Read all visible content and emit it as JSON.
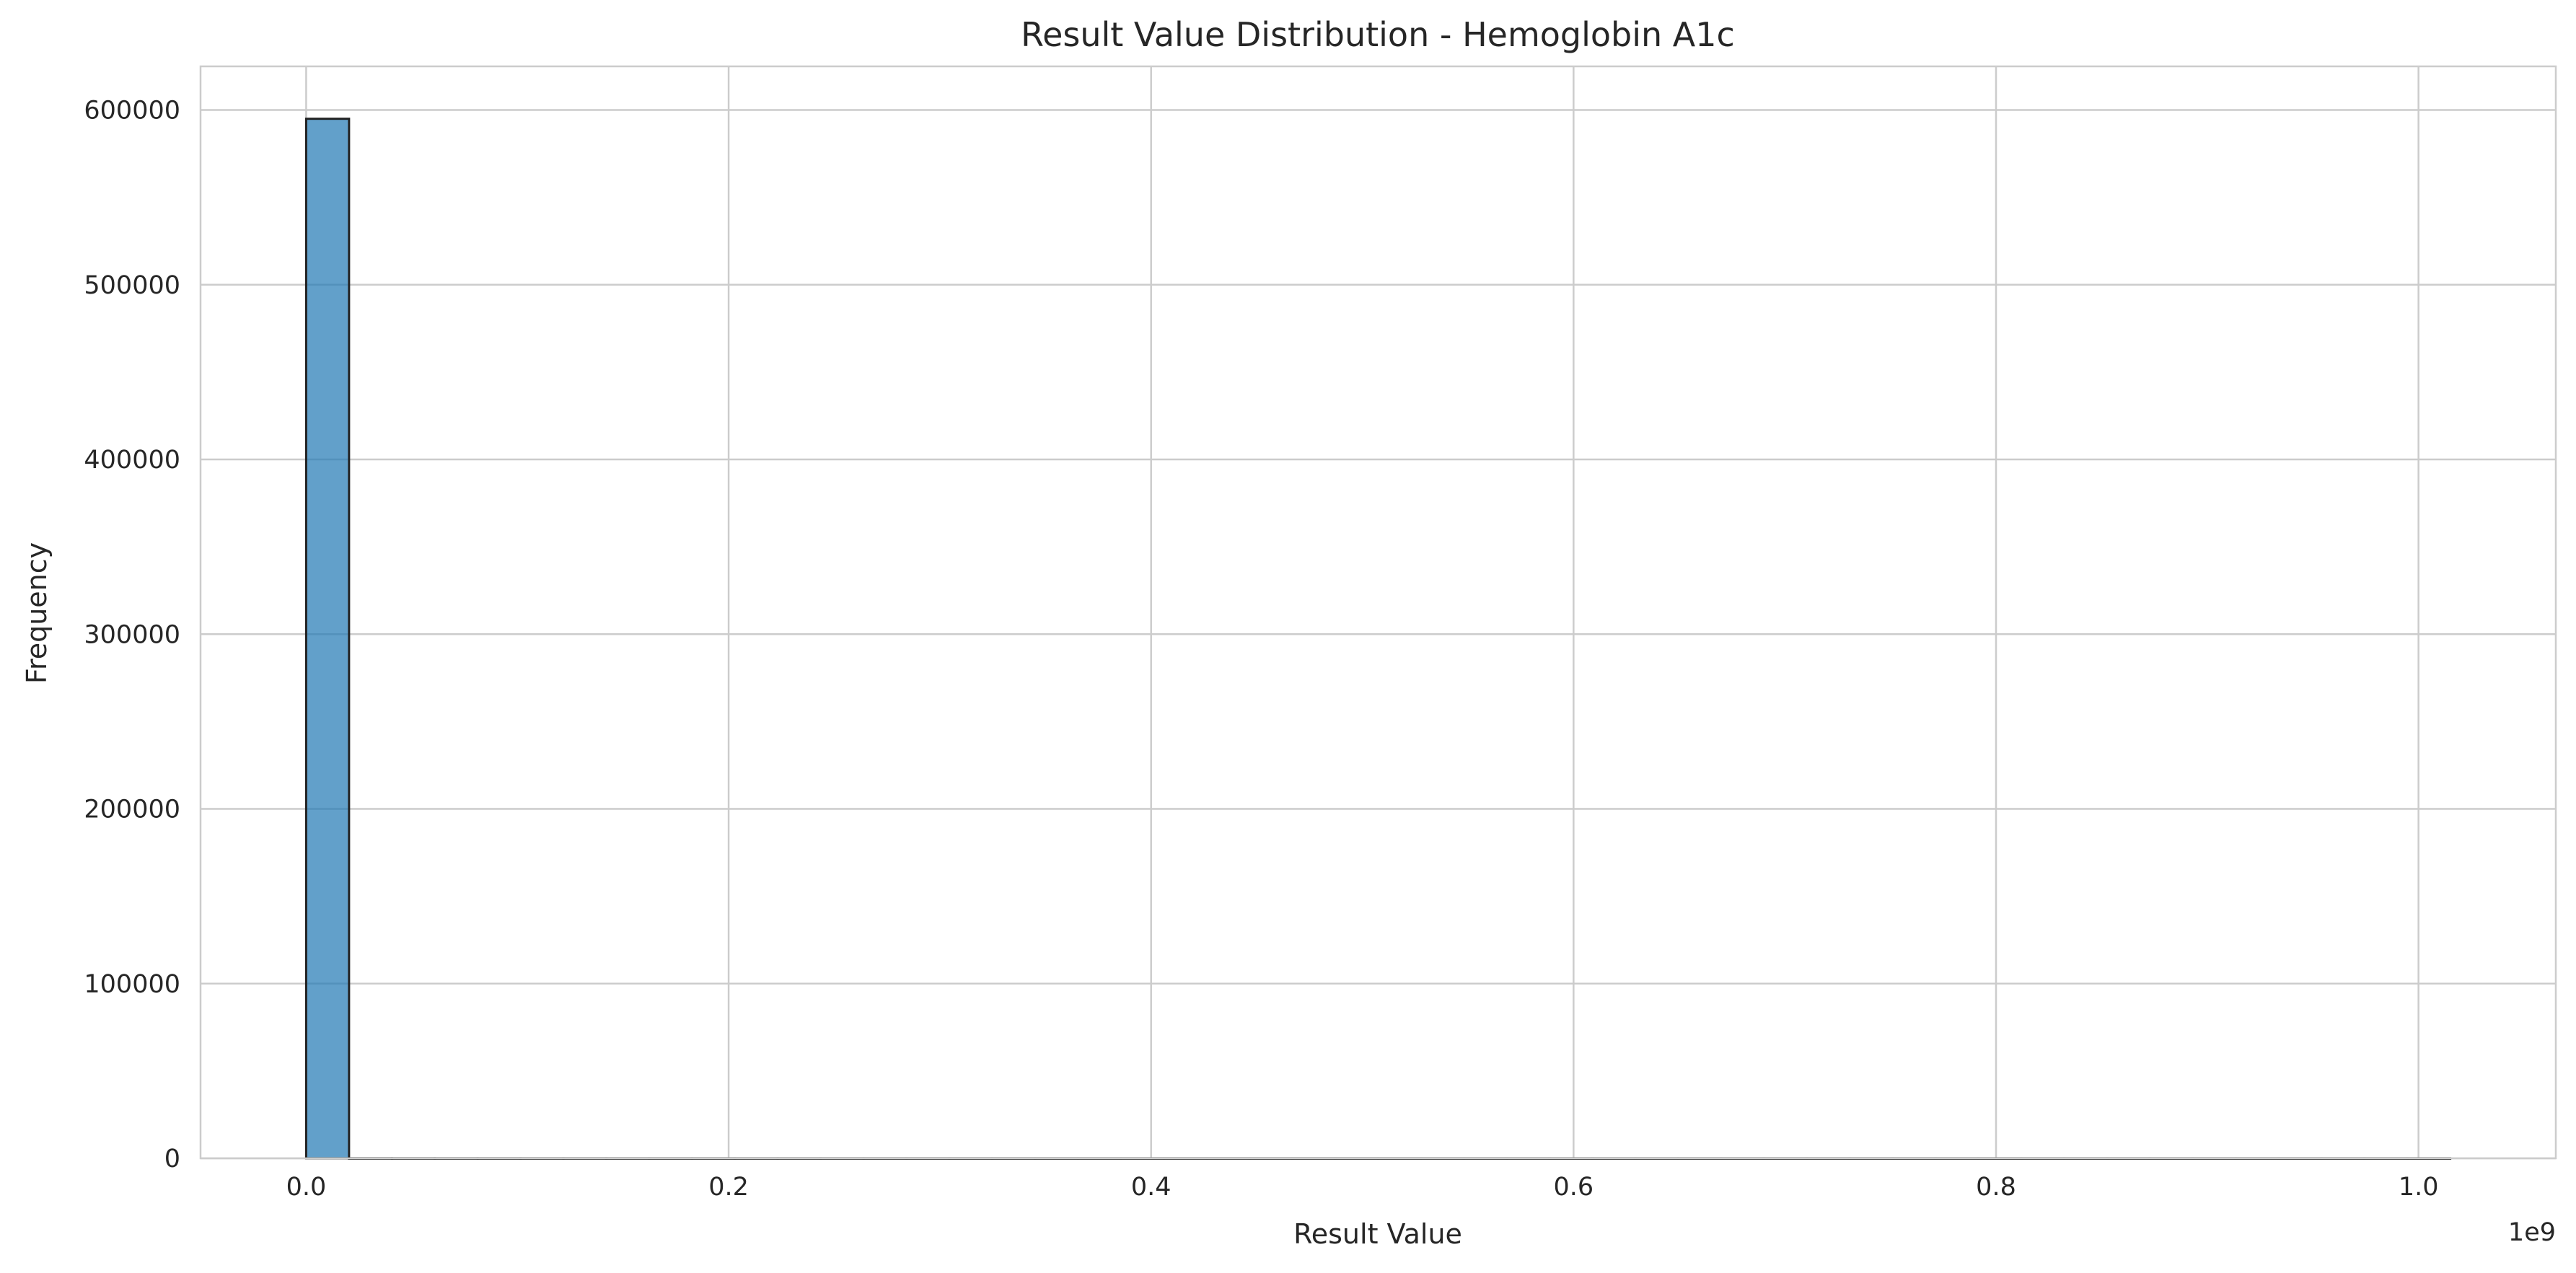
{
  "chart_data": {
    "type": "bar",
    "title": "Result Value Distribution - Hemoglobin A1c",
    "xlabel": "Result Value",
    "ylabel": "Frequency",
    "x_offset_label": "1e9",
    "xlim": [
      -0.05,
      1.065
    ],
    "ylim": [
      0,
      625000
    ],
    "xticks": [
      0.0,
      0.2,
      0.4,
      0.6,
      0.8,
      1.0
    ],
    "xtick_labels": [
      "0.0",
      "0.2",
      "0.4",
      "0.6",
      "0.8",
      "1.0"
    ],
    "yticks": [
      0,
      100000,
      200000,
      300000,
      400000,
      500000,
      600000
    ],
    "ytick_labels": [
      "0",
      "100000",
      "200000",
      "300000",
      "400000",
      "500000",
      "600000"
    ],
    "grid": true,
    "bar_color": "#1f77b4",
    "bin_start": 0.0,
    "bin_width": 0.0203,
    "values": [
      595000,
      30,
      20,
      15,
      12,
      10,
      10,
      8,
      8,
      8,
      6,
      6,
      6,
      5,
      5,
      5,
      5,
      4,
      4,
      4,
      4,
      4,
      3,
      3,
      3,
      3,
      3,
      3,
      3,
      2,
      2,
      2,
      2,
      2,
      2,
      2,
      2,
      2,
      2,
      2,
      2,
      2,
      2,
      2,
      2,
      2,
      2,
      2,
      2,
      2
    ]
  }
}
